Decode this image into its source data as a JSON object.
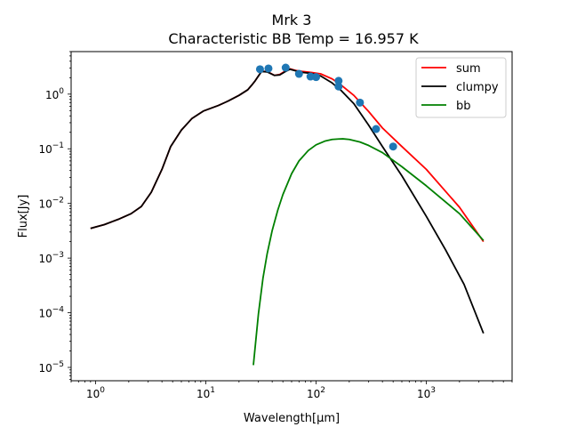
{
  "chart_data": {
    "type": "line",
    "title": "Mrk 3",
    "subtitle": "Characteristic BB Temp = 16.957 K",
    "xlabel": "Wavelength[μm]",
    "ylabel": "Flux[Jy]",
    "xscale": "log",
    "yscale": "log",
    "xlim": [
      0.6,
      6000
    ],
    "ylim": [
      5.7e-06,
      6.0
    ],
    "x_ticks": [
      {
        "value": 1,
        "base": "10",
        "exp": "0"
      },
      {
        "value": 10,
        "base": "10",
        "exp": "1"
      },
      {
        "value": 100,
        "base": "10",
        "exp": "2"
      },
      {
        "value": 1000,
        "base": "10",
        "exp": "3"
      }
    ],
    "y_ticks": [
      {
        "value": 1e-05,
        "base": "10",
        "exp": "−5"
      },
      {
        "value": 0.0001,
        "base": "10",
        "exp": "−4"
      },
      {
        "value": 0.001,
        "base": "10",
        "exp": "−3"
      },
      {
        "value": 0.01,
        "base": "10",
        "exp": "−2"
      },
      {
        "value": 0.1,
        "base": "10",
        "exp": "−1"
      },
      {
        "value": 1,
        "base": "10",
        "exp": "0"
      }
    ],
    "legend_position": "top-right",
    "grid": false,
    "series": [
      {
        "name": "sum",
        "color": "#ff0000",
        "points": [
          [
            0.9,
            0.0035
          ],
          [
            1.2,
            0.0041
          ],
          [
            1.6,
            0.0051
          ],
          [
            2.1,
            0.0065
          ],
          [
            2.6,
            0.0088
          ],
          [
            3.2,
            0.016
          ],
          [
            4.0,
            0.042
          ],
          [
            4.8,
            0.11
          ],
          [
            6.0,
            0.22
          ],
          [
            7.5,
            0.36
          ],
          [
            9.5,
            0.49
          ],
          [
            13,
            0.62
          ],
          [
            16,
            0.75
          ],
          [
            20,
            0.95
          ],
          [
            24,
            1.2
          ],
          [
            26,
            1.45
          ],
          [
            28,
            1.75
          ],
          [
            32,
            2.6
          ],
          [
            36,
            2.6
          ],
          [
            42,
            2.2
          ],
          [
            47,
            2.3
          ],
          [
            52,
            2.6
          ],
          [
            58,
            2.9
          ],
          [
            66,
            2.7
          ],
          [
            75,
            2.6
          ],
          [
            90,
            2.5
          ],
          [
            110,
            2.35
          ],
          [
            140,
            1.9
          ],
          [
            170,
            1.45
          ],
          [
            220,
            0.95
          ],
          [
            300,
            0.48
          ],
          [
            400,
            0.24
          ],
          [
            600,
            0.11
          ],
          [
            1000,
            0.042
          ],
          [
            2000,
            0.0085
          ],
          [
            3300,
            0.002
          ]
        ]
      },
      {
        "name": "clumpy",
        "color": "#000000",
        "points": [
          [
            0.9,
            0.0035
          ],
          [
            1.2,
            0.0041
          ],
          [
            1.6,
            0.0051
          ],
          [
            2.1,
            0.0065
          ],
          [
            2.6,
            0.0088
          ],
          [
            3.2,
            0.016
          ],
          [
            4.0,
            0.042
          ],
          [
            4.8,
            0.11
          ],
          [
            6.0,
            0.22
          ],
          [
            7.5,
            0.36
          ],
          [
            9.5,
            0.49
          ],
          [
            13,
            0.62
          ],
          [
            16,
            0.75
          ],
          [
            20,
            0.95
          ],
          [
            24,
            1.2
          ],
          [
            26,
            1.45
          ],
          [
            28,
            1.75
          ],
          [
            32,
            2.6
          ],
          [
            36,
            2.55
          ],
          [
            42,
            2.2
          ],
          [
            47,
            2.25
          ],
          [
            52,
            2.55
          ],
          [
            58,
            2.85
          ],
          [
            66,
            2.65
          ],
          [
            75,
            2.5
          ],
          [
            90,
            2.4
          ],
          [
            110,
            2.15
          ],
          [
            140,
            1.6
          ],
          [
            170,
            1.15
          ],
          [
            220,
            0.67
          ],
          [
            300,
            0.27
          ],
          [
            400,
            0.11
          ],
          [
            600,
            0.032
          ],
          [
            1000,
            0.0058
          ],
          [
            1500,
            0.0014
          ],
          [
            2200,
            0.00033
          ],
          [
            3300,
            4.2e-05
          ]
        ]
      },
      {
        "name": "bb",
        "color": "#008000",
        "points": [
          [
            27,
            1.1e-05
          ],
          [
            30,
            9.5e-05
          ],
          [
            33,
            0.00043
          ],
          [
            36,
            0.0012
          ],
          [
            40,
            0.0032
          ],
          [
            45,
            0.0076
          ],
          [
            50,
            0.0145
          ],
          [
            60,
            0.035
          ],
          [
            70,
            0.06
          ],
          [
            85,
            0.093
          ],
          [
            100,
            0.118
          ],
          [
            120,
            0.138
          ],
          [
            140,
            0.148
          ],
          [
            160,
            0.151
          ],
          [
            175,
            0.152
          ],
          [
            200,
            0.148
          ],
          [
            250,
            0.133
          ],
          [
            300,
            0.115
          ],
          [
            400,
            0.085
          ],
          [
            600,
            0.047
          ],
          [
            1000,
            0.021
          ],
          [
            2000,
            0.0065
          ],
          [
            3300,
            0.0021
          ]
        ]
      }
    ],
    "observations": {
      "color": "#1f77b4",
      "points": [
        [
          31,
          2.85
        ],
        [
          37,
          2.95
        ],
        [
          53,
          3.05
        ],
        [
          70,
          2.35
        ],
        [
          89,
          2.1
        ],
        [
          100,
          2.05
        ],
        [
          160,
          1.75
        ],
        [
          160,
          1.38
        ],
        [
          250,
          0.7
        ],
        [
          350,
          0.23
        ],
        [
          500,
          0.11
        ]
      ]
    }
  }
}
